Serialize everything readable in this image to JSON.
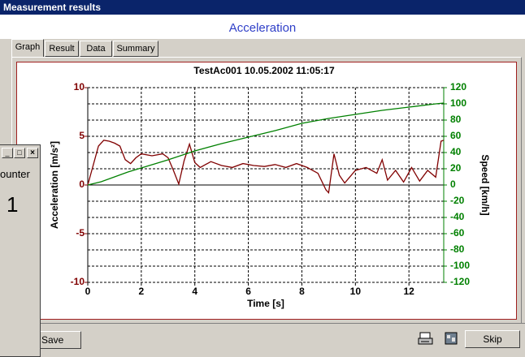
{
  "window": {
    "title": "Measurement results",
    "header": "Acceleration",
    "tabs": [
      "Graph",
      "Result",
      "Data",
      "Summary"
    ],
    "buttons": {
      "save": "Save",
      "skip": "Skip"
    }
  },
  "counter_window": {
    "label": "ounter",
    "value": "1"
  },
  "chart_data": {
    "type": "line",
    "title": "TestAc001 10.05.2002 11:05:17",
    "x_label": "Time [s]",
    "y_label": "Acceleration [m/s²]",
    "y2_label": "Speed [km/h]",
    "xlim": [
      0,
      13.3
    ],
    "xticks": [
      0,
      2,
      4,
      6,
      8,
      10,
      12
    ],
    "ylim": [
      -10,
      10
    ],
    "yticks": [
      10,
      5,
      0,
      -5,
      -10
    ],
    "y2lim": [
      -120,
      120
    ],
    "y2ticks": [
      120,
      100,
      80,
      60,
      40,
      20,
      0,
      -20,
      -40,
      -60,
      -80,
      -100,
      -120
    ],
    "grid": true,
    "series": [
      {
        "name": "Acceleration",
        "color": "#800000",
        "x": [
          0,
          0.2,
          0.4,
          0.6,
          0.8,
          1.0,
          1.2,
          1.4,
          1.6,
          1.8,
          2.0,
          2.4,
          2.8,
          3.0,
          3.2,
          3.4,
          3.6,
          3.8,
          4.0,
          4.2,
          4.6,
          5.0,
          5.4,
          5.8,
          6.2,
          6.6,
          7.0,
          7.4,
          7.8,
          8.2,
          8.6,
          8.9,
          9.0,
          9.2,
          9.4,
          9.6,
          10.0,
          10.4,
          10.8,
          11.0,
          11.2,
          11.5,
          11.8,
          12.1,
          12.4,
          12.7,
          13.0,
          13.2,
          13.3
        ],
        "values": [
          0,
          2,
          4,
          4.6,
          4.5,
          4.3,
          4.0,
          2.6,
          2.2,
          2.8,
          3.2,
          3.0,
          3.2,
          2.8,
          1.5,
          0.1,
          2.5,
          4.2,
          2.3,
          1.8,
          2.4,
          2.0,
          1.8,
          2.2,
          2.0,
          1.9,
          2.1,
          1.8,
          2.2,
          1.8,
          1.2,
          -0.5,
          -0.8,
          3.2,
          1.0,
          0.2,
          1.5,
          1.8,
          1.2,
          2.6,
          0.5,
          1.5,
          0.3,
          1.8,
          0.4,
          1.5,
          0.8,
          4.5,
          4.6
        ]
      },
      {
        "name": "Speed",
        "color": "#008000",
        "axis": "y2",
        "x": [
          0,
          0.5,
          1,
          1.5,
          2,
          3,
          4,
          5,
          6,
          7,
          8,
          9,
          10,
          11,
          12,
          13,
          13.3
        ],
        "values": [
          0,
          4,
          10,
          16,
          21,
          31,
          42,
          51,
          59,
          67,
          76,
          82,
          87,
          92,
          96,
          100,
          101
        ]
      }
    ]
  }
}
